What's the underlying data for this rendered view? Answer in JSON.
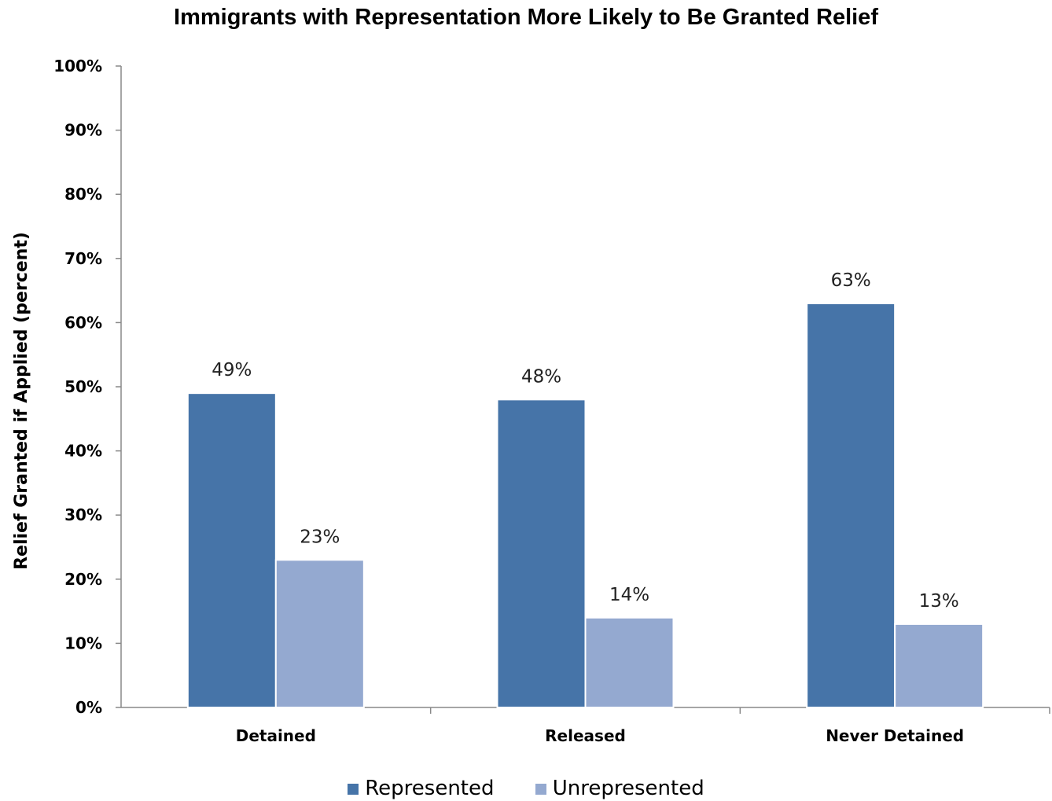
{
  "chart_data": {
    "type": "bar",
    "title": "Immigrants with Representation More Likely to Be Granted Relief",
    "xlabel": "",
    "ylabel": "Relief Granted if Applied (percent)",
    "categories": [
      "Detained",
      "Released",
      "Never Detained"
    ],
    "series": [
      {
        "name": "Represented",
        "values": [
          49,
          48,
          63
        ],
        "labels": [
          "49%",
          "48%",
          "63%"
        ],
        "color": "#4674a8"
      },
      {
        "name": "Unrepresented",
        "values": [
          23,
          14,
          13
        ],
        "labels": [
          "23%",
          "14%",
          "13%"
        ],
        "color": "#94a9d0"
      }
    ],
    "ylim": [
      0,
      100
    ],
    "yticks": [
      0,
      10,
      20,
      30,
      40,
      50,
      60,
      70,
      80,
      90,
      100
    ],
    "ytick_labels": [
      "0%",
      "10%",
      "20%",
      "30%",
      "40%",
      "50%",
      "60%",
      "70%",
      "80%",
      "90%",
      "100%"
    ],
    "grid": false,
    "legend_position": "bottom"
  }
}
